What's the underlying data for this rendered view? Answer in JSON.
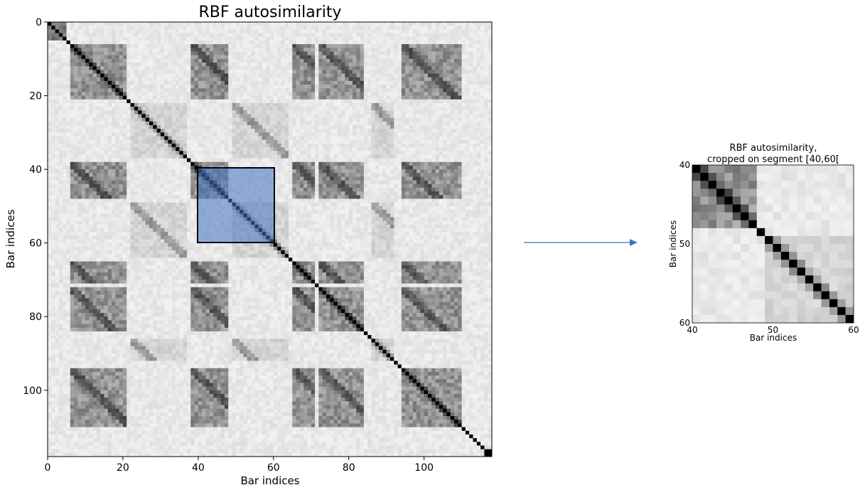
{
  "charts": {
    "main": {
      "title": "RBF autosimilarity",
      "xlabel": "Bar indices",
      "ylabel": "Bar indices",
      "xticks": [
        "0",
        "20",
        "40",
        "60",
        "80",
        "100"
      ],
      "yticks": [
        "0",
        "20",
        "40",
        "60",
        "80",
        "100"
      ]
    },
    "inset": {
      "title_line1": "RBF autosimilarity,",
      "title_line2": "cropped on segment [40,60[",
      "xlabel": "Bar indices",
      "ylabel": "Bar indices",
      "xticks": [
        "40",
        "50",
        "60"
      ],
      "yticks": [
        "40",
        "50",
        "60"
      ]
    }
  },
  "colors": {
    "highlight_fill": "#4472c4",
    "arrow": "#4472c4",
    "diagonal": "#000000"
  },
  "chart_data": [
    {
      "type": "heatmap",
      "title": "RBF autosimilarity",
      "xlabel": "Bar indices",
      "ylabel": "Bar indices",
      "size": 118,
      "xlim": [
        0,
        118
      ],
      "ylim": [
        118,
        0
      ],
      "colormap": "greys",
      "diagonal_value": 1.0,
      "highlight_segment": [
        40,
        60
      ],
      "segment_boundaries": [
        0,
        5,
        6,
        21,
        22,
        37,
        38,
        48,
        49,
        64,
        65,
        71,
        72,
        74,
        80,
        81,
        84,
        86,
        92,
        94,
        110,
        116,
        118
      ]
    },
    {
      "type": "heatmap",
      "title": "RBF autosimilarity, cropped on segment [40,60[",
      "xlabel": "Bar indices",
      "ylabel": "Bar indices",
      "xlim": [
        40,
        60
      ],
      "ylim": [
        60,
        40
      ],
      "colormap": "greys",
      "diagonal_value": 1.0
    }
  ]
}
